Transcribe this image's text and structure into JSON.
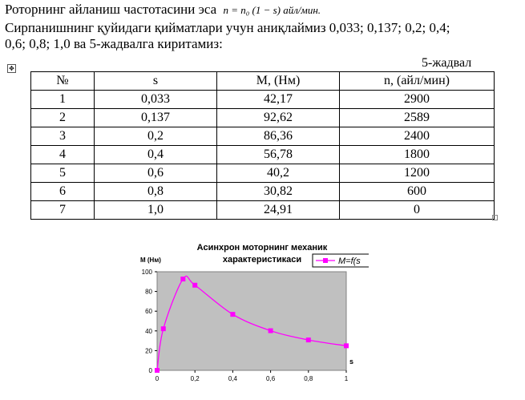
{
  "intro": {
    "text": "Роторнинг айланиш частотасини эса",
    "formula": "n = n₀ (1 − s) айл/мин."
  },
  "paragraph": {
    "line1": "Сирпанишнинг қуйидаги қийматлари учун аниқлаймиз 0,033; 0,137; 0,2; 0,4;",
    "line2": "0,6; 0,8; 1,0 ва 5-жадвалга киритамиз:"
  },
  "table": {
    "label": "5-жадвал",
    "headers": [
      "№",
      "s",
      "M, (Нм)",
      "n, (айл/мин)"
    ],
    "rows": [
      [
        "1",
        "0,033",
        "42,17",
        "2900"
      ],
      [
        "2",
        "0,137",
        "92,62",
        "2589"
      ],
      [
        "3",
        "0,2",
        "86,36",
        "2400"
      ],
      [
        "4",
        "0,4",
        "56,78",
        "1800"
      ],
      [
        "5",
        "0,6",
        "40,2",
        "1200"
      ],
      [
        "6",
        "0,8",
        "30,82",
        "600"
      ],
      [
        "7",
        "1,0",
        "24,91",
        "0"
      ]
    ]
  },
  "chart_data": {
    "type": "line",
    "title_line1": "Асинхрон моторнинг механик",
    "title_line2": "характеристикаси",
    "ylabel": "М (Нм)",
    "xlabel": "s",
    "legend": "M=f(s",
    "legend_position": "top-right",
    "grid": false,
    "plot_background": "#c0c0c0",
    "series_color": "#ff00ff",
    "xlim": [
      0,
      1
    ],
    "ylim": [
      0,
      100
    ],
    "x_ticks": [
      "0",
      "0,2",
      "0,4",
      "0,6",
      "0,8",
      "1"
    ],
    "y_ticks": [
      "0",
      "20",
      "40",
      "60",
      "80",
      "100"
    ],
    "series": [
      {
        "name": "M=f(s",
        "x": [
          0,
          0.033,
          0.137,
          0.2,
          0.4,
          0.6,
          0.8,
          1.0
        ],
        "y": [
          0,
          42.17,
          92.62,
          86.36,
          56.78,
          40.2,
          30.82,
          24.91
        ]
      }
    ]
  }
}
